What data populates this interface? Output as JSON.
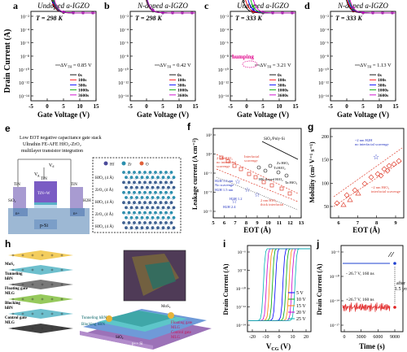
{
  "row1": [
    {
      "letter": "a",
      "title": "Undoped a-IGZO",
      "temp": "T = 298 K",
      "dvth": "ΔV",
      "dvth_sub": "TH",
      "dvth_val": "= 0.85 V",
      "show_ylabel": true,
      "legend": [
        "0s",
        "100s",
        "300s",
        "1000s",
        "3600s"
      ],
      "yticks": [
        "10⁻²",
        "10⁻⁴",
        "10⁻⁶",
        "10⁻⁸",
        "10⁻¹⁰",
        "10⁻¹²",
        "10⁻¹⁴"
      ],
      "xticks": [
        "-5",
        "0",
        "5",
        "10",
        "15"
      ],
      "shifts": [
        0,
        0.2,
        0.4,
        0.6,
        0.85
      ],
      "turn_on": 1.5
    },
    {
      "letter": "b",
      "title": "N-doped a-IGZO",
      "temp": "T = 298 K",
      "dvth": "ΔV",
      "dvth_sub": "TH",
      "dvth_val": "= 0.42 V",
      "show_ylabel": false,
      "legend": [
        "0s",
        "100s",
        "300s",
        "1000s",
        "3600s"
      ],
      "yticks": [
        "10⁻²",
        "10⁻⁴",
        "10⁻⁶",
        "10⁻⁸",
        "10⁻¹⁰",
        "10⁻¹²",
        "10⁻¹⁴"
      ],
      "xticks": [
        "-5",
        "0",
        "5",
        "10",
        "15"
      ],
      "shifts": [
        0,
        0.1,
        0.2,
        0.3,
        0.42
      ],
      "turn_on": 0.0
    },
    {
      "letter": "c",
      "title": "Undoped a-IGZO",
      "temp": "T = 333 K",
      "dvth": "ΔV",
      "dvth_sub": "TH",
      "dvth_val": "= 3.21 V",
      "show_ylabel": false,
      "legend": [
        "0s",
        "100s",
        "300s",
        "1000s",
        "3600s"
      ],
      "yticks": [
        "10⁻²",
        "10⁻⁴",
        "10⁻⁶",
        "10⁻⁸",
        "10⁻¹⁰",
        "10⁻¹²",
        "10⁻¹⁴"
      ],
      "xticks": [
        "-5",
        "0",
        "5",
        "10",
        "15"
      ],
      "shifts": [
        0,
        0.8,
        1.6,
        2.4,
        3.21
      ],
      "turn_on": -1.0,
      "hump_label": "humping"
    },
    {
      "letter": "d",
      "title": "N-doped a-IGZO",
      "temp": "T = 333 K",
      "dvth": "ΔV",
      "dvth_sub": "TH",
      "dvth_val": "= 1.13 V",
      "show_ylabel": false,
      "legend": [
        "0s",
        "100s",
        "300s",
        "1000s",
        "3600s"
      ],
      "yticks": [
        "10⁻²",
        "10⁻⁴",
        "10⁻⁶",
        "10⁻⁸",
        "10⁻¹⁰",
        "10⁻¹²",
        "10⁻¹⁴"
      ],
      "xticks": [
        "-5",
        "0",
        "5",
        "10",
        "15"
      ],
      "shifts": [
        0,
        0.3,
        0.6,
        0.9,
        1.13
      ],
      "turn_on": 0.0
    }
  ],
  "row1_ylabel": "Drain Current (A)",
  "row1_xlabel": "Gate Voltage (V)",
  "series_colors": [
    "#000000",
    "#ff0000",
    "#0000ff",
    "#00aa00",
    "#cc00cc"
  ],
  "panel_e": {
    "letter": "e",
    "caption": [
      "Low EOT negative capacitance gate stack",
      "Ultrathin FE-AFE HfO₂-ZrO₂",
      "multilayer transistor integration"
    ],
    "labels": {
      "vd": "V",
      "vd_sub": "d",
      "vg": "V",
      "vg_sub": "g",
      "tin": "TiN",
      "sio2": "SiO₂",
      "h2h": "H2H",
      "tin_w": "TiN+W",
      "nplus": "n+",
      "psi": "p-Si"
    },
    "right_labels": [
      "HfO₂ (4 Å)",
      "ZrO₂ (4 Å)",
      "HfO₂ (4 Å)",
      "ZrO₂ (4 Å)",
      "HfO₂ (4 Å)"
    ],
    "legend_elems": [
      "Hf",
      "Zr",
      "O"
    ]
  },
  "panel_f": {
    "letter": "f",
    "ylabel": "Leakage current (A cm⁻²)",
    "xlabel": "EOT (Å)",
    "xticks": [
      "5",
      "6",
      "7",
      "8",
      "9",
      "10",
      "11",
      "12",
      "13"
    ],
    "yticks": [
      "10³",
      "10¹",
      "10⁻¹",
      "10⁻³",
      "10⁻⁵"
    ],
    "annotations": [
      "SiO₂/Poly-Si",
      "2 nm HfO₂",
      "no interfacial",
      "scavenge",
      "Interfacial",
      "scavenge",
      "HK-doped HfO₂",
      "Ti:HfO₂",
      "Ta:HfO₂",
      "Zr:HfO₂",
      "H2H 1.0 nm",
      "No scavenge",
      "H2H 1.5 nm",
      "2 nm HfO₂",
      "thick interfacial",
      "H2H 1.2",
      "H2H 2.4"
    ]
  },
  "panel_g": {
    "letter": "g",
    "ylabel": "Mobility (cm² V⁻¹ s⁻¹)",
    "xlabel": "EOT (Å)",
    "xticks": [
      "6",
      "7",
      "8",
      "9"
    ],
    "yticks": [
      "50",
      "100",
      "150",
      "200"
    ],
    "annotations": [
      "~2 nm H2H",
      "no interfacial scavenge",
      "~2 nm HfO₂",
      "interfacial scavenge"
    ]
  },
  "panel_h": {
    "letter": "h",
    "layers": [
      "MoS₂",
      "Tunneling",
      "hBN",
      "Floating gate",
      "MLG",
      "Blocking",
      "hBN",
      "Control gate",
      "MLG"
    ],
    "device_labels": [
      "MoS₂",
      "Floating gate",
      "MLG",
      "Control gate",
      "MLG",
      "Tunneling hBN",
      "Blocking hBN",
      "SiO₂",
      "p++ Si"
    ]
  },
  "panel_i": {
    "letter": "i",
    "ylabel": "Drain Current (A)",
    "xlabel": "V",
    "xlabel_sub": "CG",
    "xlabel_tail": " (V)",
    "xticks": [
      "-20",
      "-10",
      "0",
      "10",
      "20"
    ],
    "yticks": [
      "10⁻⁶",
      "10⁻⁸",
      "10⁻¹⁰",
      "10⁻¹²",
      "10⁻¹⁴"
    ],
    "legend": [
      "5 V",
      "10 V",
      "15 V",
      "20 V",
      "25 V"
    ],
    "colors": [
      "#0000ff",
      "#00aa00",
      "#ff8800",
      "#cc00cc",
      "#00b3b3"
    ]
  },
  "panel_j": {
    "letter": "j",
    "ylabel": "Drain Current (A)",
    "xlabel": "Time (s)",
    "xticks": [
      "0",
      "3000",
      "6000",
      "9000"
    ],
    "yticks": [
      "10⁻⁶",
      "10⁻¹⁰",
      "10⁻¹⁴",
      "10⁻¹⁷"
    ],
    "annotations": [
      "- 26.7 V, 160 ns",
      "+26.7 V, 160 ns",
      "after",
      "1.5 yrs"
    ]
  }
}
